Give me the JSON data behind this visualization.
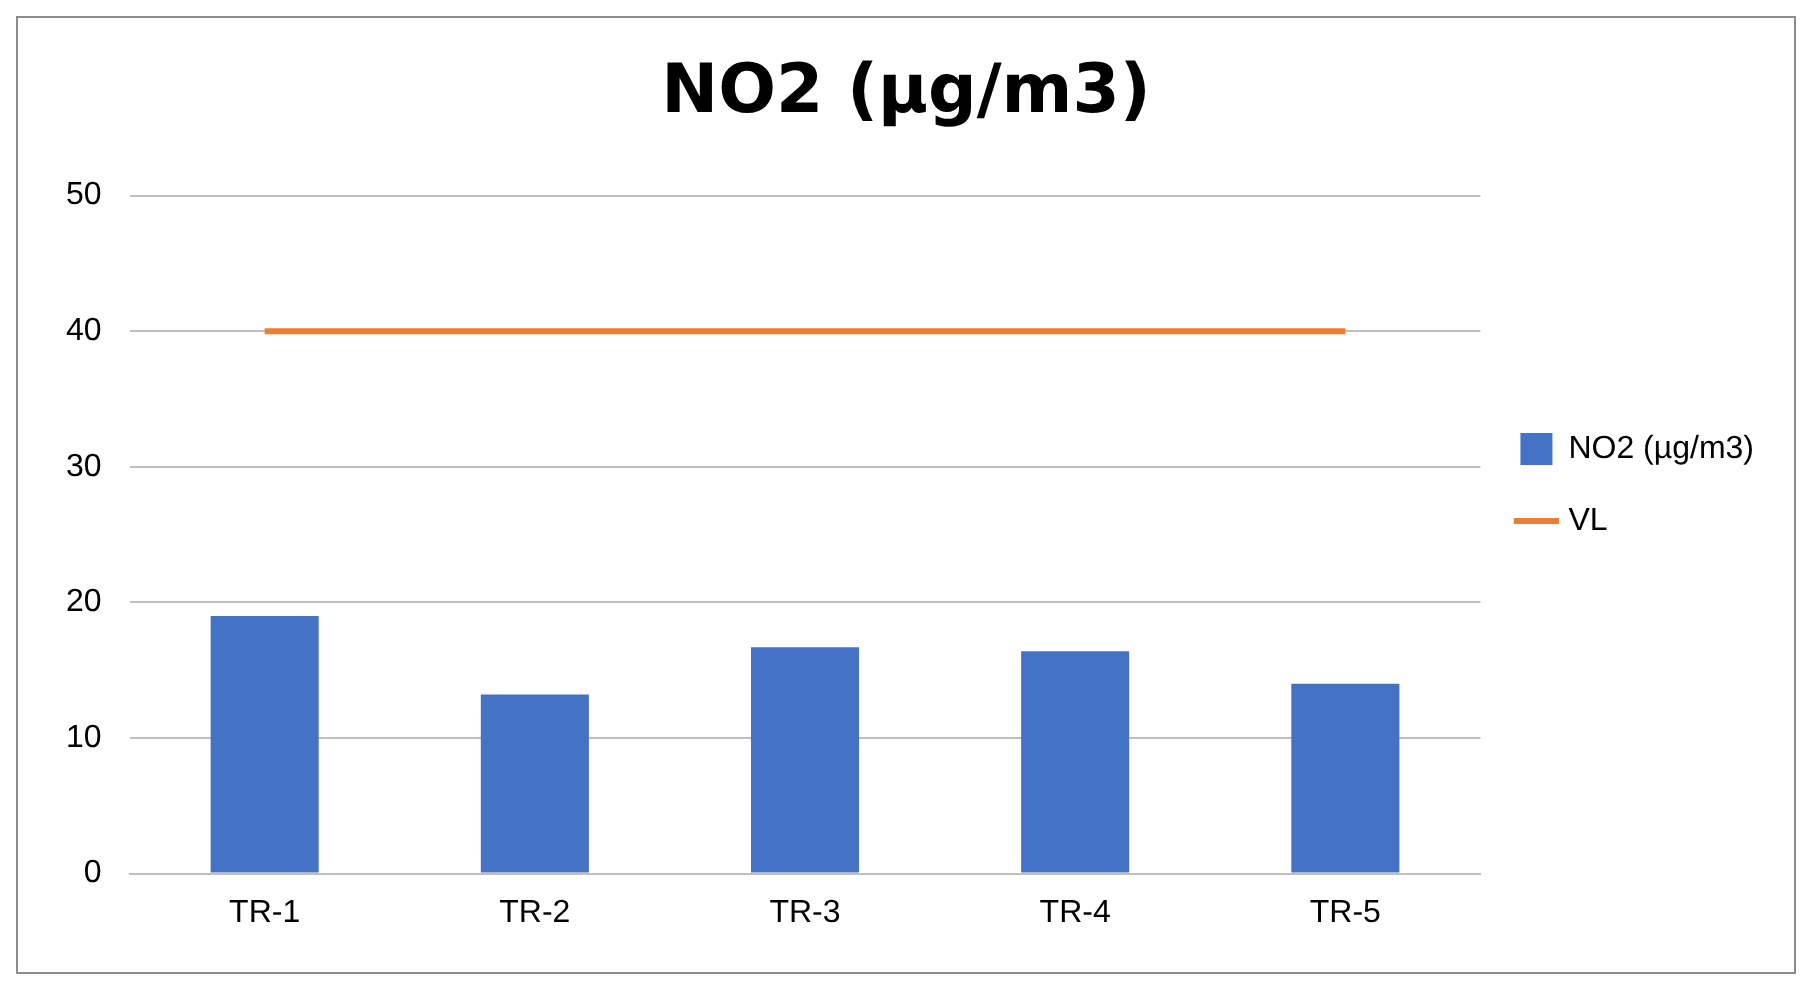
{
  "chart_data": {
    "type": "bar",
    "title": "NO2 (µg/m3)",
    "categories": [
      "TR-1",
      "TR-2",
      "TR-3",
      "TR-4",
      "TR-5"
    ],
    "series": [
      {
        "name": "NO2 (µg/m3)",
        "color": "#4472c4",
        "values": [
          19.0,
          13.2,
          16.7,
          16.4,
          14.0
        ]
      },
      {
        "name": "VL",
        "type": "line",
        "color": "#ed7d31",
        "values": [
          40,
          40,
          40,
          40,
          40
        ]
      }
    ],
    "ylim": [
      0,
      50
    ],
    "yticks": [
      0,
      10,
      20,
      30,
      40,
      50
    ],
    "grid": "y",
    "legend": "right"
  }
}
